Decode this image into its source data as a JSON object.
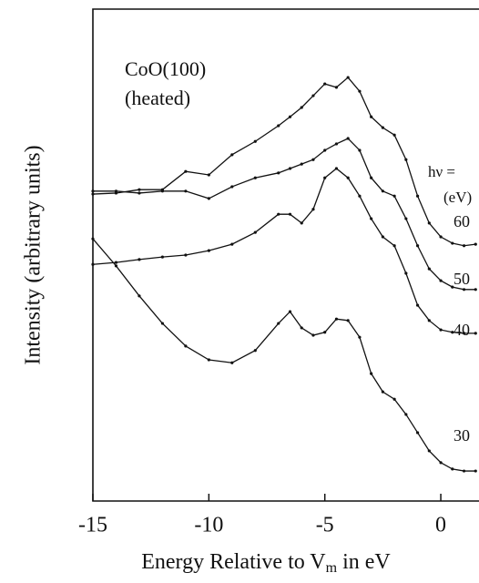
{
  "chart_data": {
    "type": "line",
    "title": "CoO(100)",
    "subtitle": "(heated)",
    "annotations": [
      "hν =",
      "(eV)"
    ],
    "y_label": "Intensity  (arbitrary units)",
    "x_label": {
      "text": "Energy Relative to V",
      "sub": "m",
      "rest": " in eV"
    },
    "x": [
      -15,
      -14,
      -13,
      -12,
      -11,
      -10,
      -9,
      -8,
      -7,
      -6.5,
      -6,
      -5.5,
      -5,
      -4.5,
      -4,
      -3.5,
      -3,
      -2.5,
      -2,
      -1.5,
      -1,
      -0.5,
      0,
      0.5,
      1,
      1.5
    ],
    "series": [
      {
        "name": "60",
        "color": "#111111",
        "values": [
          62.4,
          62.6,
          63.3,
          63.3,
          67.0,
          66.3,
          70.4,
          73.1,
          76.3,
          78.1,
          80.0,
          82.4,
          84.8,
          84.1,
          86.1,
          83.3,
          78.1,
          75.9,
          74.4,
          69.4,
          62.0,
          56.5,
          53.7,
          52.4,
          51.9,
          52.2
        ]
      },
      {
        "name": "50",
        "color": "#111111",
        "values": [
          63.0,
          63.0,
          62.6,
          63.0,
          63.0,
          61.5,
          63.9,
          65.7,
          66.7,
          67.6,
          68.5,
          69.4,
          71.3,
          72.6,
          73.7,
          71.3,
          65.7,
          63.0,
          62.0,
          57.4,
          51.9,
          47.2,
          44.8,
          43.5,
          43.0,
          43.0
        ]
      },
      {
        "name": "40",
        "color": "#111111",
        "values": [
          48.1,
          48.5,
          49.1,
          49.6,
          50.0,
          50.9,
          52.2,
          54.6,
          58.3,
          58.3,
          56.5,
          59.3,
          65.7,
          67.6,
          65.7,
          62.0,
          57.4,
          53.7,
          51.9,
          46.3,
          39.8,
          36.7,
          34.8,
          34.3,
          34.1,
          34.1
        ]
      },
      {
        "name": "30",
        "color": "#111111",
        "values": [
          53.3,
          47.8,
          41.7,
          36.1,
          31.5,
          28.7,
          28.1,
          30.6,
          36.1,
          38.5,
          35.2,
          33.7,
          34.3,
          37.0,
          36.7,
          33.3,
          25.9,
          22.2,
          20.7,
          17.6,
          13.9,
          10.2,
          7.8,
          6.5,
          6.1,
          6.1
        ]
      }
    ],
    "xlim": [
      -15,
      1.65
    ],
    "ylim": [
      0,
      100
    ],
    "xticks": [
      -15,
      -10,
      -5,
      0
    ]
  }
}
